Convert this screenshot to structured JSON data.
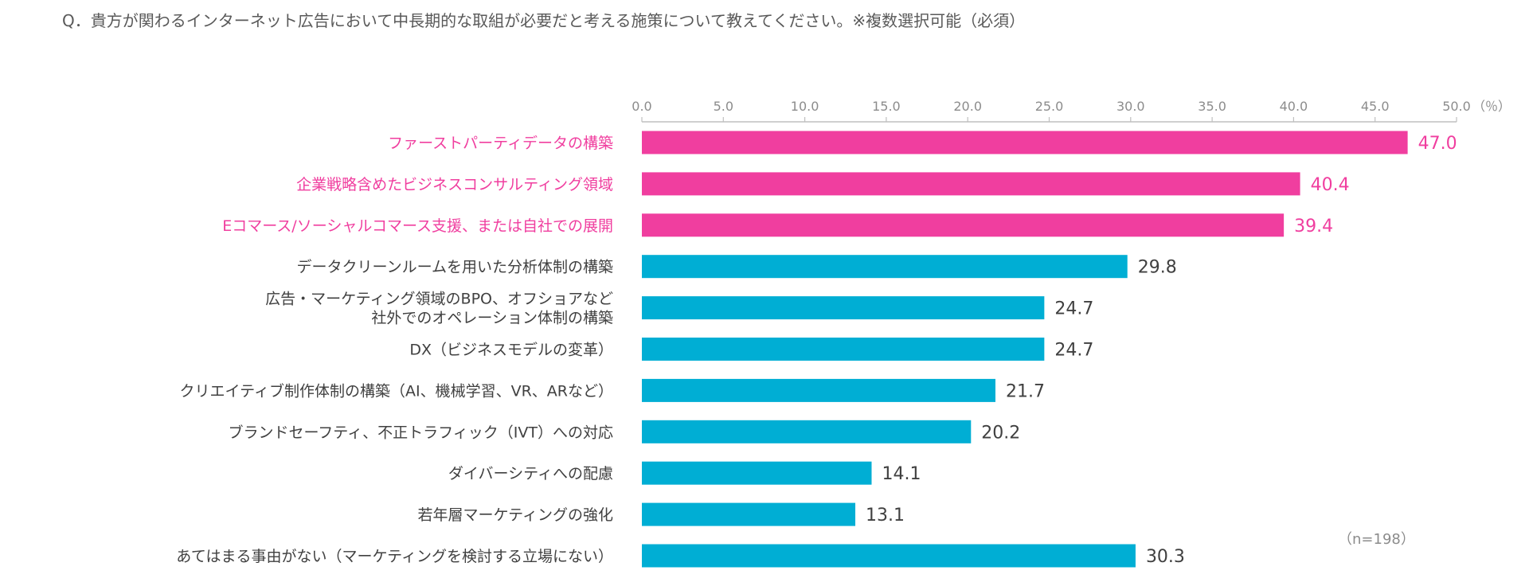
{
  "question": "Q．貴方が関わるインターネット広告において中長期的な取組が必要だと考える施策について教えてください。※複数選択可能（必須）",
  "sample_size": "（n=198）",
  "colors": {
    "highlight": "#f03e9f",
    "default": "#00aed4",
    "axis": "#bfbfbf",
    "tick_text": "#8c8c8c",
    "label_text": "#404040"
  },
  "chart_data": {
    "type": "bar",
    "orientation": "horizontal",
    "unit_label": "（％）",
    "xlim": [
      0,
      50
    ],
    "ticks": [
      "0.0",
      "5.0",
      "10.0",
      "15.0",
      "20.0",
      "25.0",
      "30.0",
      "35.0",
      "40.0",
      "45.0",
      "50.0"
    ],
    "categories": [
      [
        "ファーストパーティデータの構築"
      ],
      [
        "企業戦略含めたビジネスコンサルティング領域"
      ],
      [
        "Eコマース/ソーシャルコマース支援、または自社での展開"
      ],
      [
        "データクリーンルームを用いた分析体制の構築"
      ],
      [
        "広告・マーケティング領域のBPO、オフショアなど",
        "社外でのオペレーション体制の構築"
      ],
      [
        "DX（ビジネスモデルの変革）"
      ],
      [
        "クリエイティブ制作体制の構築（AI、機械学習、VR、ARなど）"
      ],
      [
        "ブランドセーフティ、不正トラフィック（IVT）への対応"
      ],
      [
        "ダイバーシティへの配慮"
      ],
      [
        "若年層マーケティングの強化"
      ],
      [
        "あてはまる事由がない（マーケティングを検討する立場にない）"
      ]
    ],
    "values": [
      47.0,
      40.4,
      39.4,
      29.8,
      24.7,
      24.7,
      21.7,
      20.2,
      14.1,
      13.1,
      30.3
    ],
    "value_labels": [
      "47.0",
      "40.4",
      "39.4",
      "29.8",
      "24.7",
      "24.7",
      "21.7",
      "20.2",
      "14.1",
      "13.1",
      "30.3"
    ],
    "highlighted": [
      true,
      true,
      true,
      false,
      false,
      false,
      false,
      false,
      false,
      false,
      false
    ],
    "grid": false
  }
}
